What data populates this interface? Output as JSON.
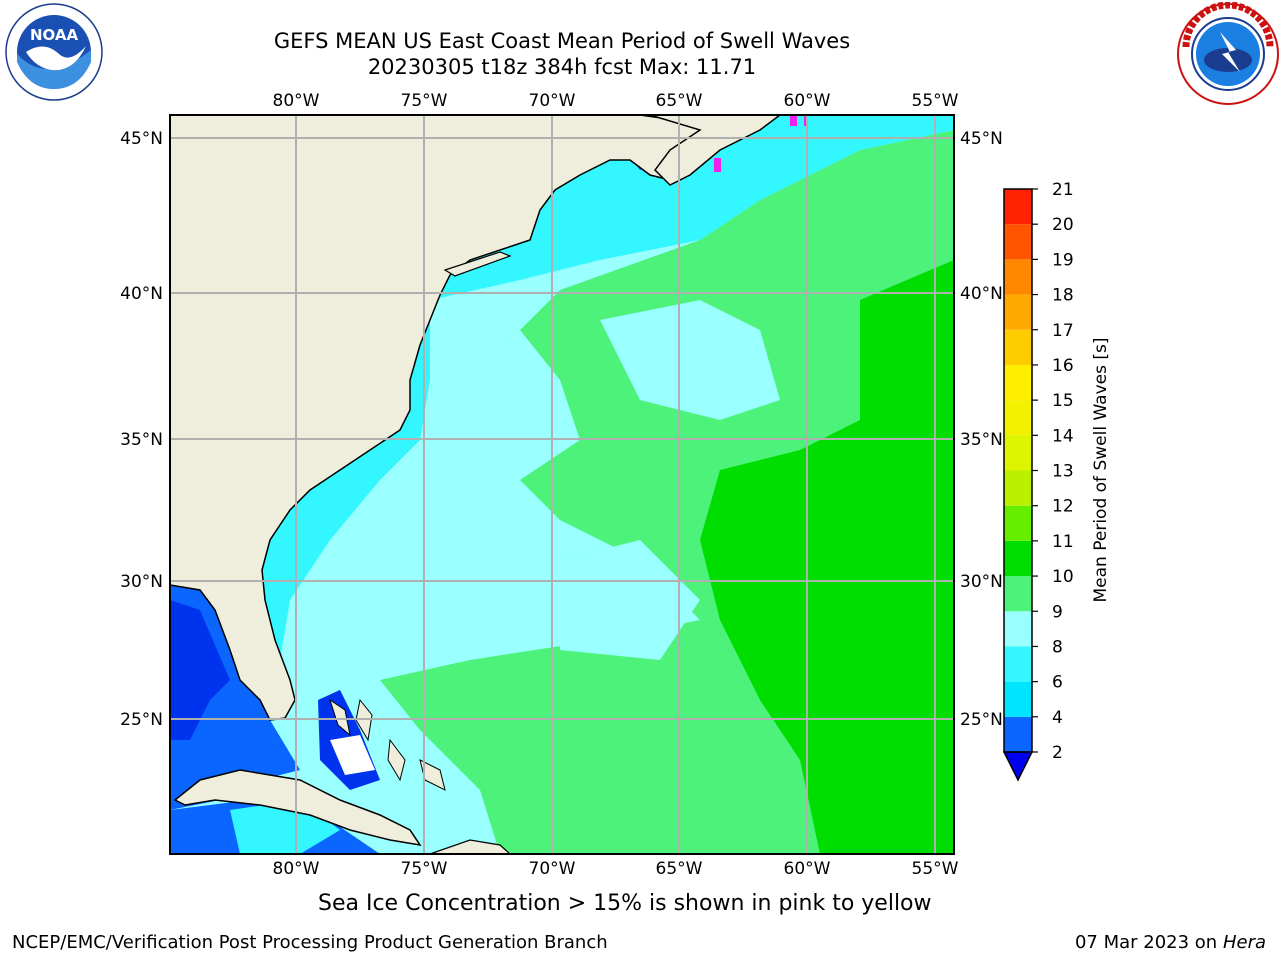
{
  "header": {
    "title_line1": "GEFS MEAN US East Coast Mean Period of Swell Waves",
    "title_line2": "20230305 t18z 384h fcst   Max: 11.71"
  },
  "logos": {
    "left": "noaa-logo",
    "left_text": "NOAA",
    "right": "national-weather-service-logo"
  },
  "map": {
    "longitude_labels": [
      "80°W",
      "75°W",
      "70°W",
      "65°W",
      "60°W",
      "55°W"
    ],
    "latitude_labels": [
      "45°N",
      "40°N",
      "35°N",
      "30°N",
      "25°N"
    ],
    "land_color": "#efeedd",
    "grid_color": "#b0b0b0"
  },
  "colorbar": {
    "label": "Mean Period of Swell Waves [s]",
    "levels": [
      "2",
      "4",
      "6",
      "8",
      "9",
      "10",
      "11",
      "12",
      "13",
      "14",
      "15",
      "16",
      "17",
      "18",
      "19",
      "20",
      "21"
    ],
    "colors": [
      "#0a66ff",
      "#00e5ff",
      "#33f6ff",
      "#99ffff",
      "#4cf27a",
      "#00dd00",
      "#66ee00",
      "#bbf000",
      "#ddf500",
      "#f2f200",
      "#ffee00",
      "#ffcc00",
      "#ffaa00",
      "#ff8800",
      "#ff5500",
      "#ff2200",
      "#ff0000"
    ],
    "extend_color": "#0000ee"
  },
  "footer": {
    "sea_ice_note": "Sea Ice Concentration > 15% is shown in pink to yellow",
    "credit": "NCEP/EMC/Verification Post Processing Product Generation Branch",
    "date": "07 Mar 2023 on",
    "host": "Hera"
  }
}
